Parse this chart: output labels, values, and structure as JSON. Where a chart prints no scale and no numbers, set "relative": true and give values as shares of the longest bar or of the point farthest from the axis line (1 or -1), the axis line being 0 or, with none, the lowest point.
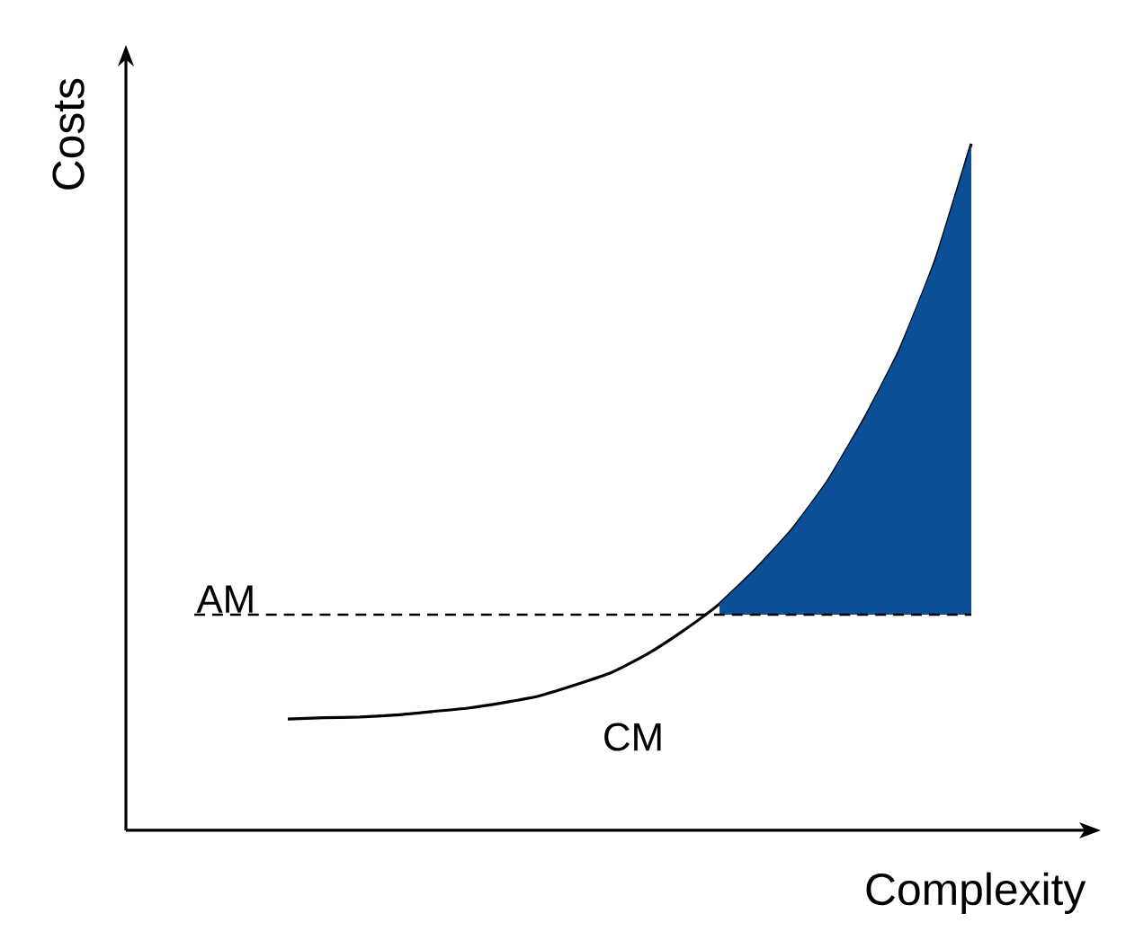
{
  "chart_data": {
    "type": "line",
    "relative": true,
    "xlabel": "Complexity",
    "ylabel": "Costs",
    "categories": [
      null,
      null,
      null,
      null,
      null,
      null,
      null,
      null,
      null,
      null,
      null,
      null,
      null,
      null,
      null,
      null,
      null,
      null,
      null,
      null
    ],
    "series": [
      {
        "name": "CM",
        "color": "#000000",
        "values": [
          0.162,
          0.164,
          0.165,
          0.168,
          0.173,
          0.178,
          0.186,
          0.196,
          0.212,
          0.23,
          0.257,
          0.291,
          0.33,
          0.38,
          0.437,
          0.508,
          0.597,
          0.699,
          0.83,
          1
        ]
      },
      {
        "type": "area",
        "color": "#0b4f96",
        "values": [
          null,
          null,
          null,
          null,
          null,
          null,
          null,
          null,
          null,
          null,
          null,
          null,
          0.33,
          0.38,
          0.437,
          0.508,
          0.597,
          0.699,
          0.83,
          1
        ]
      }
    ],
    "ref_lines": [
      {
        "axis": "y",
        "value": 0.314,
        "label": "AM",
        "color": "#000000",
        "line_style": "dashed"
      }
    ]
  }
}
